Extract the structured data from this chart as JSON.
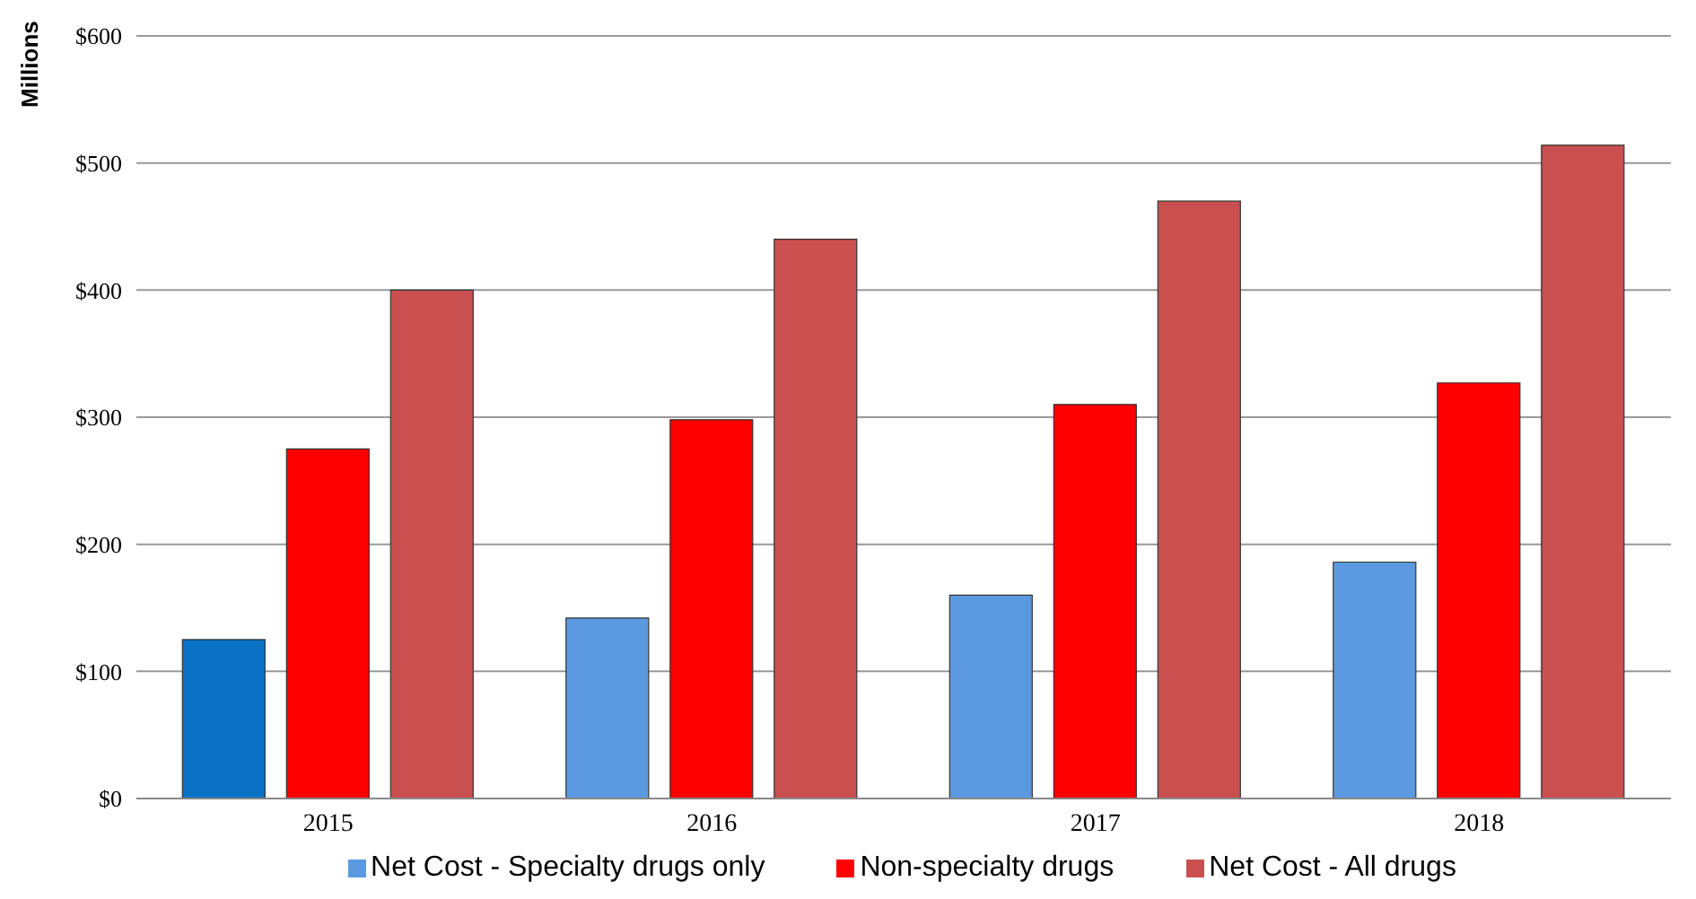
{
  "chart_data": {
    "type": "bar",
    "ylabel": "Millions",
    "categories": [
      "2015",
      "2016",
      "2017",
      "2018"
    ],
    "series": [
      {
        "name": "Net Cost - Specialty drugs only",
        "color": "#5b9ae0",
        "colors": [
          "#0a72c6",
          "#5b9ae0",
          "#5b9ae0",
          "#5b9ae0"
        ],
        "values": [
          125,
          142,
          160,
          186
        ]
      },
      {
        "name": "Non-specialty drugs",
        "color": "#ff0000",
        "values": [
          275,
          298,
          310,
          327
        ]
      },
      {
        "name": "Net Cost - All drugs",
        "color": "#c9504f",
        "values": [
          400,
          440,
          470,
          514
        ]
      }
    ],
    "ylim": [
      0,
      600
    ],
    "yticks": [
      {
        "value": 0,
        "label": "$0"
      },
      {
        "value": 100,
        "label": "$100"
      },
      {
        "value": 200,
        "label": "$200"
      },
      {
        "value": 300,
        "label": "$300"
      },
      {
        "value": 400,
        "label": "$400"
      },
      {
        "value": 500,
        "label": "$500"
      },
      {
        "value": 600,
        "label": "$600"
      }
    ],
    "grid": "y",
    "legend": "bottom"
  }
}
